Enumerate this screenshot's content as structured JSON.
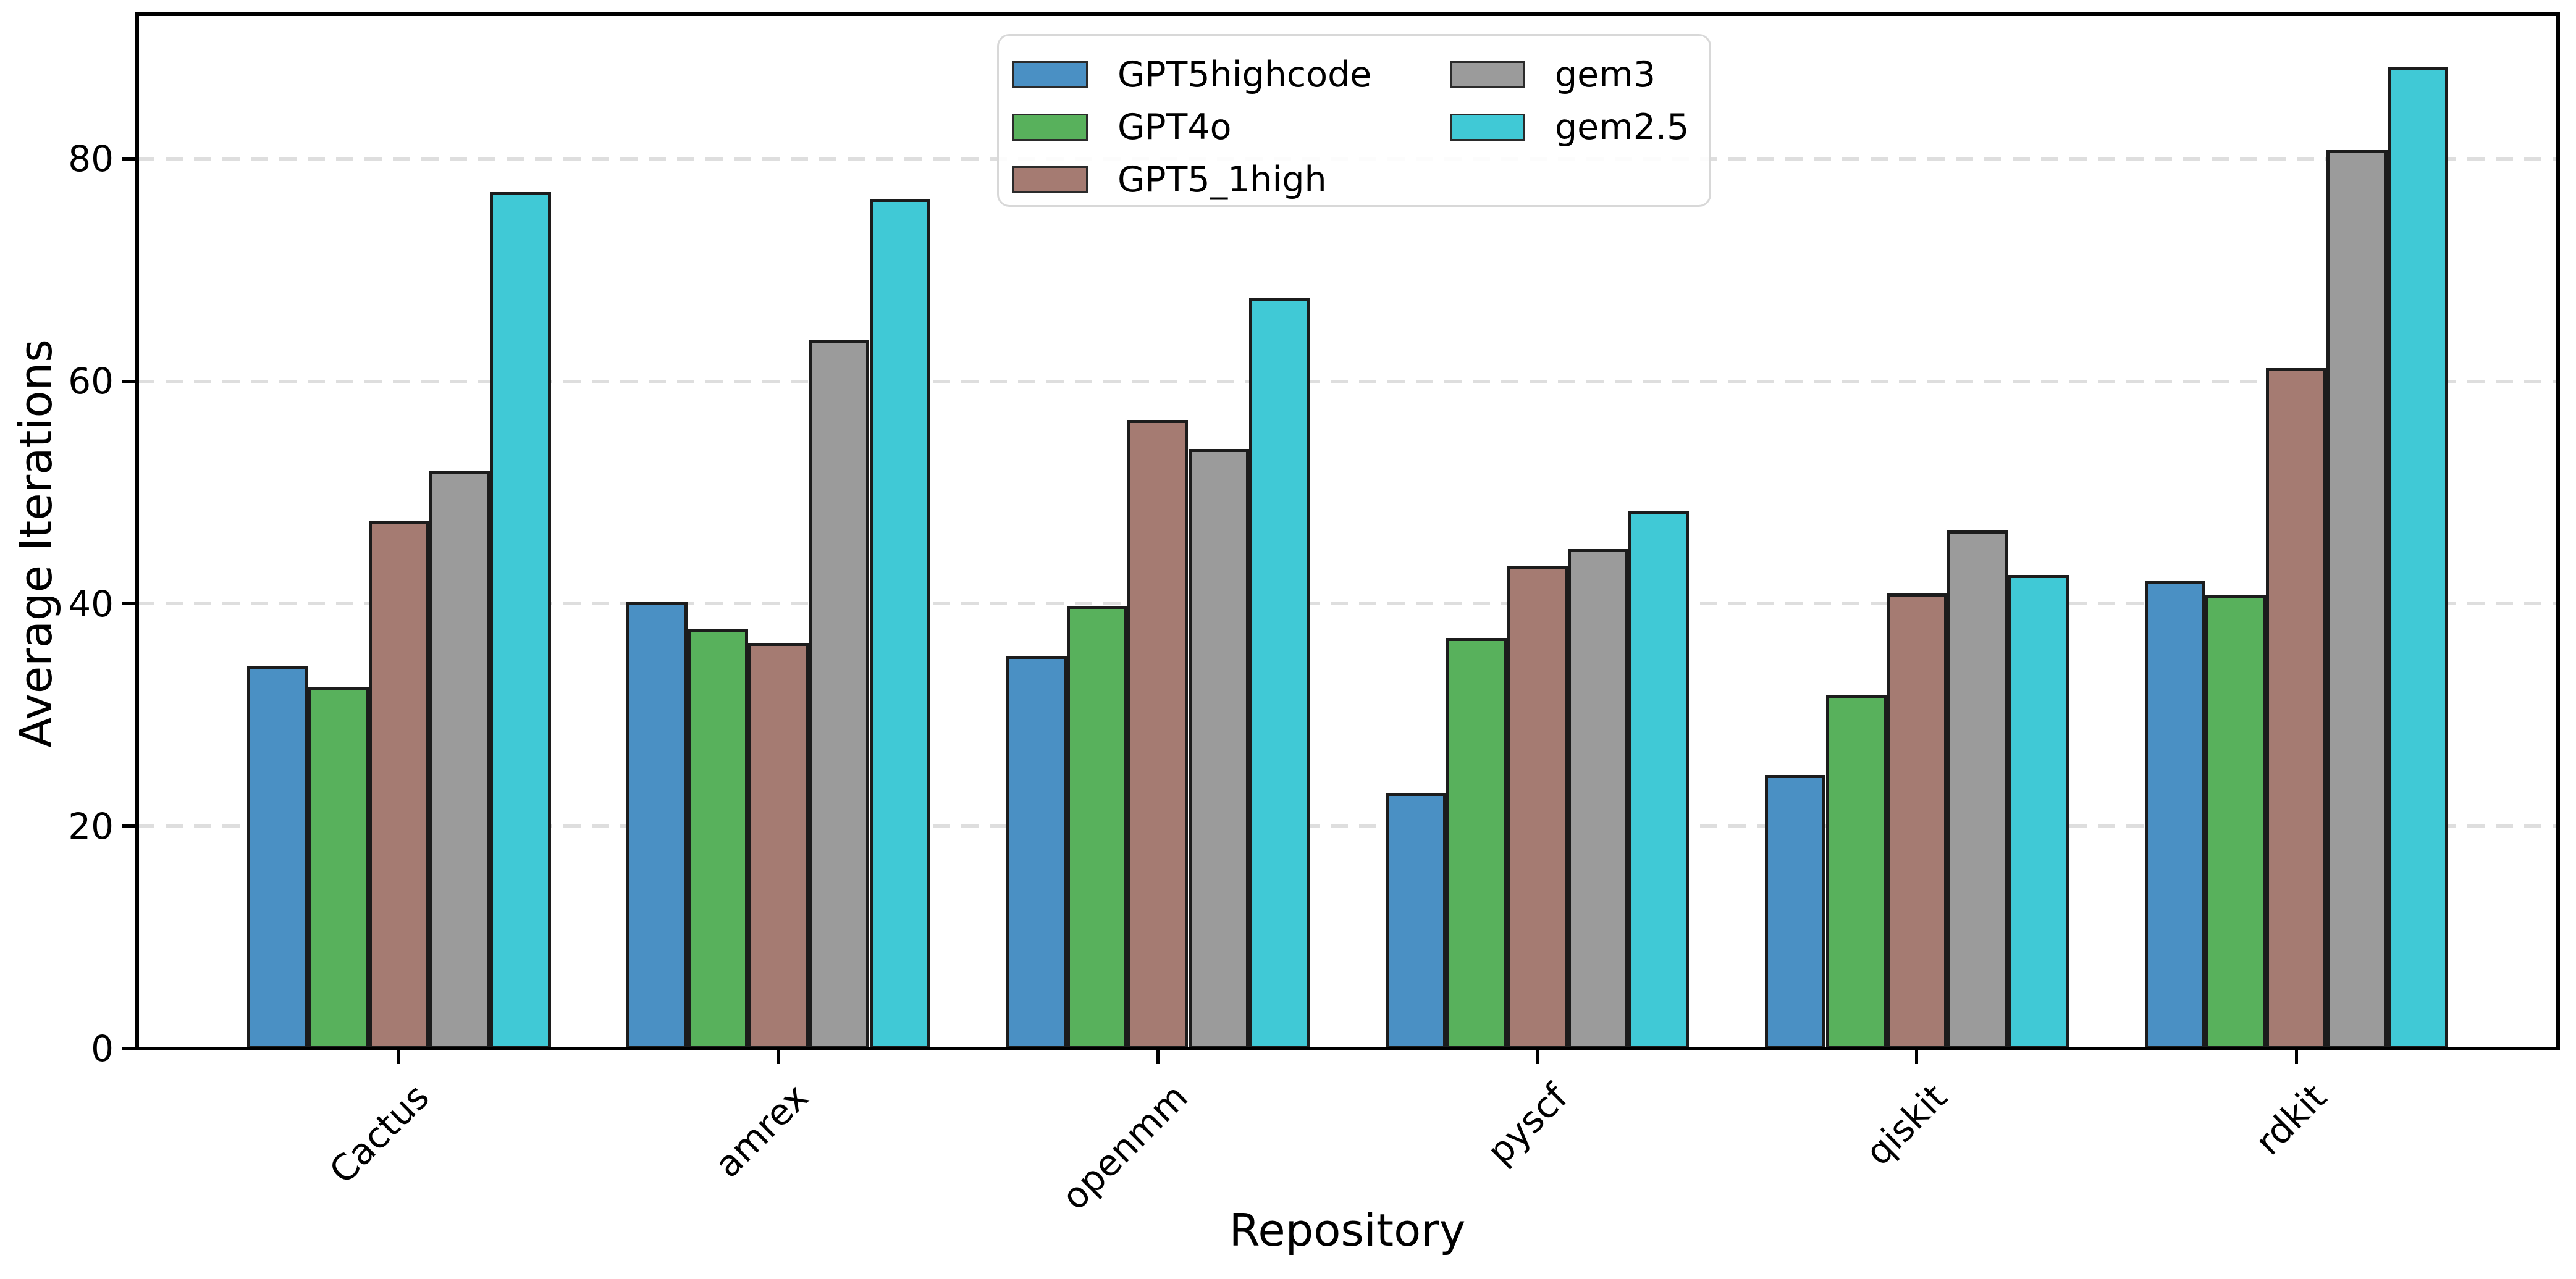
{
  "chart_data": {
    "type": "bar",
    "title": "",
    "xlabel": "Repository",
    "ylabel": "Average Iterations",
    "categories": [
      "Cactus",
      "amrex",
      "openmm",
      "pyscf",
      "qiskit",
      "rdkit"
    ],
    "series": [
      {
        "name": "GPT5highcode",
        "color": "#4a90c4",
        "values": [
          34.4,
          40.2,
          35.3,
          23.0,
          24.6,
          42.1
        ]
      },
      {
        "name": "GPT4o",
        "color": "#58b15c",
        "values": [
          32.5,
          37.7,
          39.8,
          36.9,
          31.8,
          40.8
        ]
      },
      {
        "name": "GPT5_1high",
        "color": "#a57b72",
        "values": [
          47.4,
          36.5,
          56.5,
          43.4,
          40.9,
          61.2
        ]
      },
      {
        "name": "gem3",
        "color": "#9b9b9b",
        "values": [
          51.9,
          63.7,
          53.9,
          44.9,
          46.6,
          80.8
        ]
      },
      {
        "name": "gem2.5",
        "color": "#40c9d6",
        "values": [
          77.0,
          76.4,
          67.5,
          48.3,
          42.6,
          88.3
        ]
      }
    ],
    "ylim": [
      0,
      93
    ],
    "yticks": [
      0,
      20,
      40,
      60,
      80
    ],
    "xlim": [
      -0.69,
      5.69
    ],
    "bar_width_units": 0.16,
    "group_offset_units": -0.4,
    "grid": "horizontal dashed",
    "gridline_color": "#dedede",
    "bar_edge_color": "#1c1c1c",
    "legend_position": "upper center",
    "legend_columns": 2,
    "background": "#ffffff"
  }
}
